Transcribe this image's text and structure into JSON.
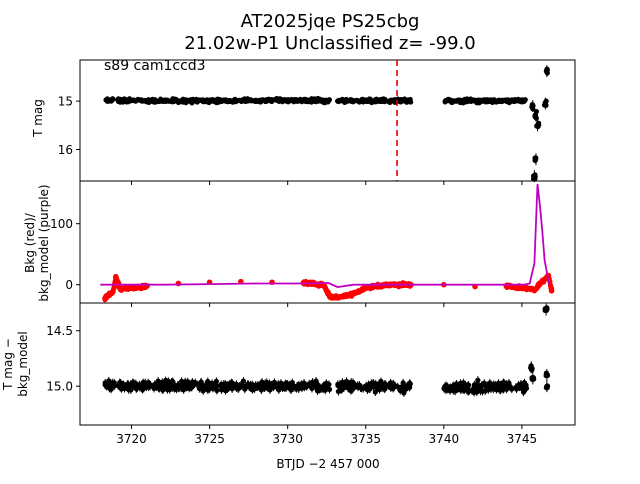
{
  "figure": {
    "title_line1": "AT2025jqe  PS25cbg",
    "title_line2": "21.02w-P1 Unclassified z= -99.0",
    "annotation": "s89 cam1ccd3",
    "xlabel": "BTJD −2 457 000"
  },
  "colors": {
    "points": "#000000",
    "bkg": "#ff0000",
    "bkg_model": "#c000c0",
    "marker_line": "#dd0000"
  },
  "chart_data": [
    {
      "type": "scatter",
      "panel": "top",
      "ylabel": "T mag",
      "xlim": [
        3716.7,
        3748.4
      ],
      "ylim": [
        16.65,
        14.15
      ],
      "y_inverted": true,
      "yticks": [
        15,
        16
      ],
      "ytick_labels": [
        "15",
        "16"
      ],
      "marker_x": 3737.0,
      "segments": [
        {
          "x0": 3718.3,
          "x1": 3718.9,
          "y": 14.98
        },
        {
          "x0": 3719.1,
          "x1": 3732.7,
          "y": 14.99
        },
        {
          "x0": 3733.2,
          "x1": 3737.9,
          "y": 14.99
        },
        {
          "x0": 3740.0,
          "x1": 3745.3,
          "y": 14.99
        }
      ],
      "features": [
        {
          "x": 3745.7,
          "y": 15.1
        },
        {
          "x": 3745.9,
          "y": 15.3
        },
        {
          "x": 3746.0,
          "y": 15.5
        },
        {
          "x": 3745.9,
          "y": 16.2
        },
        {
          "x": 3745.8,
          "y": 16.55
        },
        {
          "x": 3746.5,
          "y": 15.05
        },
        {
          "x": 3746.6,
          "y": 14.38
        }
      ]
    },
    {
      "type": "scatter+line",
      "panel": "middle",
      "ylabel": "Bkg (red)/\nbkg_model (purple)",
      "ylabel_line1": "Bkg (red)/",
      "ylabel_line2": "bkg_model (purple)",
      "xlim": [
        3716.7,
        3748.4
      ],
      "ylim": [
        -30,
        170
      ],
      "yticks": [
        0,
        100
      ],
      "ytick_labels": [
        "0",
        "100"
      ],
      "series": [
        {
          "name": "Bkg (red)",
          "points": [
            [
              3718.3,
              -22
            ],
            [
              3718.8,
              -12
            ],
            [
              3719.0,
              12
            ],
            [
              3719.3,
              -8
            ],
            [
              3720.0,
              -5
            ],
            [
              3721.0,
              -2
            ],
            [
              3723.0,
              2
            ],
            [
              3725.0,
              4
            ],
            [
              3727.0,
              5
            ],
            [
              3729.0,
              4
            ],
            [
              3731.0,
              3
            ],
            [
              3732.3,
              0
            ],
            [
              3732.7,
              -20
            ],
            [
              3733.3,
              -20
            ],
            [
              3734.2,
              -15
            ],
            [
              3735.0,
              -5
            ],
            [
              3736.5,
              0
            ],
            [
              3737.9,
              0
            ],
            [
              3740.0,
              0
            ],
            [
              3742.0,
              -3
            ],
            [
              3744.0,
              -2
            ],
            [
              3745.2,
              -5
            ],
            [
              3745.8,
              -8
            ],
            [
              3746.7,
              15
            ],
            [
              3746.9,
              -10
            ]
          ]
        },
        {
          "name": "bkg_model (purple)",
          "points": [
            [
              3718.0,
              0
            ],
            [
              3719.6,
              0
            ],
            [
              3720.3,
              0
            ],
            [
              3722,
              0
            ],
            [
              3725,
              1
            ],
            [
              3728,
              2
            ],
            [
              3731,
              2
            ],
            [
              3732.6,
              3
            ],
            [
              3733.2,
              -4
            ],
            [
              3734.2,
              0
            ],
            [
              3736,
              0
            ],
            [
              3738,
              0
            ],
            [
              3740,
              0
            ],
            [
              3742,
              0
            ],
            [
              3744,
              0
            ],
            [
              3745.1,
              0
            ],
            [
              3745.5,
              2
            ],
            [
              3745.8,
              35
            ],
            [
              3746.0,
              165
            ],
            [
              3746.15,
              130
            ],
            [
              3746.3,
              90
            ],
            [
              3746.45,
              40
            ],
            [
              3746.6,
              20
            ],
            [
              3746.75,
              0
            ]
          ]
        }
      ]
    },
    {
      "type": "scatter",
      "panel": "bottom",
      "ylabel": "T mag −\nbkg_model",
      "ylabel_line1": "T mag −",
      "ylabel_line2": "bkg_model",
      "xlim": [
        3716.7,
        3748.4
      ],
      "ylim": [
        15.35,
        14.25
      ],
      "y_inverted": true,
      "yticks": [
        14.5,
        15.0
      ],
      "ytick_labels": [
        "14.5",
        "15.0"
      ],
      "xticks": [
        3720,
        3725,
        3730,
        3735,
        3740,
        3745
      ],
      "xtick_labels": [
        "3720",
        "3725",
        "3730",
        "3735",
        "3740",
        "3745"
      ],
      "segments": [
        {
          "x0": 3718.3,
          "x1": 3718.9,
          "y": 14.99
        },
        {
          "x0": 3719.1,
          "x1": 3732.7,
          "y": 15.0
        },
        {
          "x0": 3733.2,
          "x1": 3737.9,
          "y": 15.0
        },
        {
          "x0": 3740.0,
          "x1": 3745.3,
          "y": 15.01
        }
      ],
      "features": [
        {
          "x": 3745.6,
          "y": 14.83
        },
        {
          "x": 3745.7,
          "y": 14.93
        },
        {
          "x": 3746.6,
          "y": 14.9
        },
        {
          "x": 3746.6,
          "y": 15.0
        },
        {
          "x": 3746.55,
          "y": 14.31
        }
      ]
    }
  ]
}
